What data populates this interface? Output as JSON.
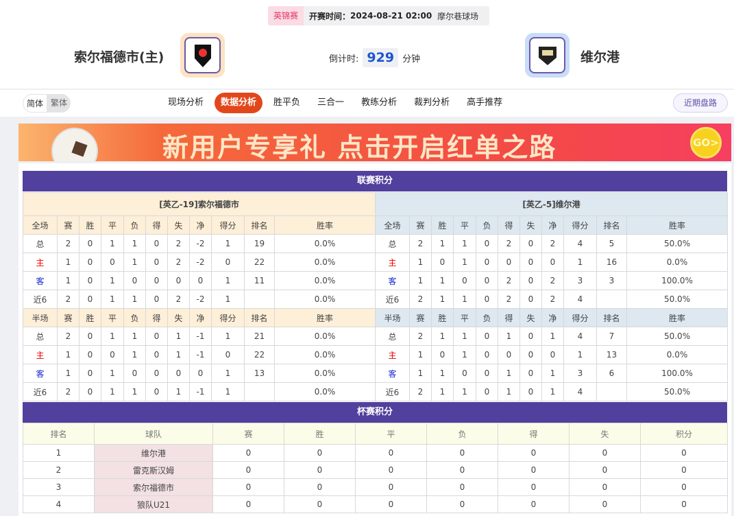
{
  "match": {
    "league": "英锦赛",
    "kickoff_label": "开赛时间：",
    "kickoff": "2024-08-21 02:00",
    "venue": "摩尔巷球场",
    "home": "索尔福德市(主)",
    "away": "维尔港",
    "countdown_label": "倒计时:",
    "countdown": "929",
    "countdown_unit": "分钟"
  },
  "lang": {
    "simplified": "简体",
    "traditional": "繁体"
  },
  "tabs": [
    "现场分析",
    "数据分析",
    "胜平负",
    "三合一",
    "教练分析",
    "裁判分析",
    "高手推荐"
  ],
  "active_tab": "数据分析",
  "recent_button": "近期盘路",
  "banner": {
    "text": "新用户专享礼 点击开启红单之路",
    "go": "GO>"
  },
  "league_table": {
    "title": "联赛积分",
    "full_cols": [
      "全场",
      "赛",
      "胜",
      "平",
      "负",
      "得",
      "失",
      "净",
      "得分",
      "排名",
      "胜率"
    ],
    "half_cols": [
      "半场",
      "赛",
      "胜",
      "平",
      "负",
      "得",
      "失",
      "净",
      "得分",
      "排名",
      "胜率"
    ],
    "home": {
      "header": "[英乙-19]索尔福德市",
      "full": [
        [
          "总",
          "2",
          "0",
          "1",
          "1",
          "0",
          "2",
          "-2",
          "1",
          "19",
          "0.0%"
        ],
        [
          "主",
          "1",
          "0",
          "0",
          "1",
          "0",
          "2",
          "-2",
          "0",
          "22",
          "0.0%"
        ],
        [
          "客",
          "1",
          "0",
          "1",
          "0",
          "0",
          "0",
          "0",
          "1",
          "11",
          "0.0%"
        ],
        [
          "近6",
          "2",
          "0",
          "1",
          "1",
          "0",
          "2",
          "-2",
          "1",
          "",
          "0.0%"
        ]
      ],
      "half": [
        [
          "总",
          "2",
          "0",
          "1",
          "1",
          "0",
          "1",
          "-1",
          "1",
          "21",
          "0.0%"
        ],
        [
          "主",
          "1",
          "0",
          "0",
          "1",
          "0",
          "1",
          "-1",
          "0",
          "22",
          "0.0%"
        ],
        [
          "客",
          "1",
          "0",
          "1",
          "0",
          "0",
          "0",
          "0",
          "1",
          "13",
          "0.0%"
        ],
        [
          "近6",
          "2",
          "0",
          "1",
          "1",
          "0",
          "1",
          "-1",
          "1",
          "",
          "0.0%"
        ]
      ]
    },
    "away": {
      "header": "[英乙-5]维尔港",
      "full": [
        [
          "总",
          "2",
          "1",
          "1",
          "0",
          "2",
          "0",
          "2",
          "4",
          "5",
          "50.0%"
        ],
        [
          "主",
          "1",
          "0",
          "1",
          "0",
          "0",
          "0",
          "0",
          "1",
          "16",
          "0.0%"
        ],
        [
          "客",
          "1",
          "1",
          "0",
          "0",
          "2",
          "0",
          "2",
          "3",
          "3",
          "100.0%"
        ],
        [
          "近6",
          "2",
          "1",
          "1",
          "0",
          "2",
          "0",
          "2",
          "4",
          "",
          "50.0%"
        ]
      ],
      "half": [
        [
          "总",
          "2",
          "1",
          "1",
          "0",
          "1",
          "0",
          "1",
          "4",
          "7",
          "50.0%"
        ],
        [
          "主",
          "1",
          "0",
          "1",
          "0",
          "0",
          "0",
          "0",
          "1",
          "13",
          "0.0%"
        ],
        [
          "客",
          "1",
          "1",
          "0",
          "0",
          "1",
          "0",
          "1",
          "3",
          "6",
          "100.0%"
        ],
        [
          "近6",
          "2",
          "1",
          "1",
          "0",
          "1",
          "0",
          "1",
          "4",
          "",
          "50.0%"
        ]
      ]
    }
  },
  "cup_table": {
    "title": "杯赛积分",
    "cols": [
      "排名",
      "球队",
      "赛",
      "胜",
      "平",
      "负",
      "得",
      "失",
      "积分"
    ],
    "rows": [
      [
        "1",
        "维尔港",
        "0",
        "0",
        "0",
        "0",
        "0",
        "0",
        "0"
      ],
      [
        "2",
        "雷克斯汉姆",
        "0",
        "0",
        "0",
        "0",
        "0",
        "0",
        "0"
      ],
      [
        "3",
        "索尔福德市",
        "0",
        "0",
        "0",
        "0",
        "0",
        "0",
        "0"
      ],
      [
        "4",
        "狼队U21",
        "0",
        "0",
        "0",
        "0",
        "0",
        "0",
        "0"
      ]
    ]
  },
  "colors": {
    "title_bar": "#51409d",
    "active_tab": "#e2471b",
    "home_row": "#ee0000",
    "away_row": "#1a28d0"
  }
}
